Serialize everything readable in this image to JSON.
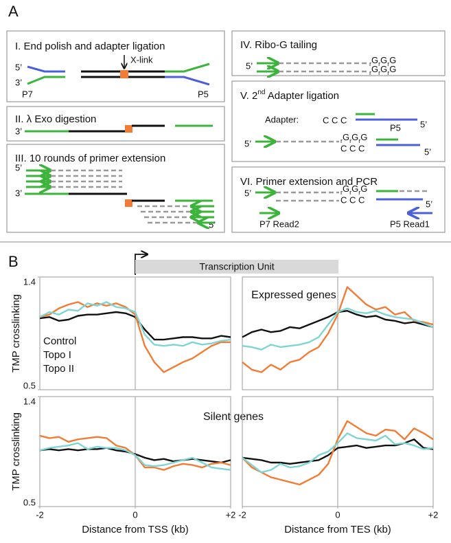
{
  "panel_a": {
    "label": "A",
    "boxes": [
      {
        "title": "I. End polish and adapter ligation",
        "labels": [
          "X-link",
          "5’",
          "3’",
          "P7",
          "P5"
        ]
      },
      {
        "title": "II. λ Exo digestion",
        "labels": [
          "3’"
        ]
      },
      {
        "title": "III. 10 rounds of primer extension",
        "labels": [
          "5’",
          "3’",
          "5’"
        ]
      },
      {
        "title": "IV. Ribo-G tailing",
        "labels": [
          "5’"
        ],
        "tails": [
          [
            "r",
            "G",
            "r",
            "G",
            "r",
            "G"
          ],
          [
            "r",
            "G",
            "r",
            "G",
            "r",
            "G"
          ]
        ]
      },
      {
        "title_parts": [
          "V. 2",
          "nd",
          " Adapter ligation"
        ],
        "labels": [
          "Adapter:",
          "C C C",
          "P5",
          "5’",
          "5’",
          "C C C",
          "5’"
        ],
        "tails": [
          [
            "r",
            "G",
            "r",
            "G",
            "r",
            "G"
          ]
        ]
      },
      {
        "title": "VI. Primer extension and PCR",
        "labels": [
          "5’",
          "C C C",
          "5’",
          "P7 Read2",
          "P5 Read1"
        ],
        "tails": [
          [
            "r",
            "G",
            "r",
            "G",
            "r",
            "G"
          ]
        ]
      }
    ]
  },
  "panel_b": {
    "label": "B",
    "transcription_unit": "Transcription Unit"
  },
  "chart_data": [
    {
      "type": "line",
      "title": "Expressed genes",
      "ylabel": "TMP crosslinking",
      "x": [
        -2,
        -1.8,
        -1.6,
        -1.4,
        -1.2,
        -1,
        -0.8,
        -0.6,
        -0.4,
        -0.2,
        0,
        0.2,
        0.4,
        0.6,
        0.8,
        1,
        1.2,
        1.4,
        1.6,
        1.8,
        2
      ],
      "xlim": [
        -2,
        2
      ],
      "ylim": [
        0.5,
        1.4
      ],
      "yticks": [
        1.4,
        0.5
      ],
      "series": [
        {
          "name": "Control",
          "color": "#111111",
          "values": [
            1.07,
            1.08,
            1.05,
            1.06,
            1.09,
            1.1,
            1.1,
            1.11,
            1.12,
            1.11,
            1.08,
            0.98,
            0.9,
            0.9,
            0.91,
            0.92,
            0.92,
            0.91,
            0.91,
            0.93,
            0.92
          ]
        },
        {
          "name": "Topo I",
          "color": "#f07c35",
          "values": [
            1.08,
            1.1,
            1.15,
            1.18,
            1.2,
            1.16,
            1.19,
            1.17,
            1.19,
            1.16,
            1.1,
            0.85,
            0.72,
            0.64,
            0.68,
            0.72,
            0.75,
            0.8,
            0.85,
            0.88,
            0.88
          ]
        },
        {
          "name": "Topo II",
          "color": "#7fd4d4",
          "values": [
            1.08,
            1.12,
            1.1,
            1.14,
            1.13,
            1.19,
            1.17,
            1.2,
            1.16,
            1.15,
            1.12,
            0.94,
            0.86,
            0.85,
            0.86,
            0.85,
            0.88,
            0.86,
            0.87,
            0.89,
            0.9
          ]
        }
      ]
    },
    {
      "type": "line",
      "x": [
        -2,
        -1.8,
        -1.6,
        -1.4,
        -1.2,
        -1,
        -0.8,
        -0.6,
        -0.4,
        -0.2,
        0,
        0.2,
        0.4,
        0.6,
        0.8,
        1,
        1.2,
        1.4,
        1.6,
        1.8,
        2
      ],
      "xlim": [
        -2,
        2
      ],
      "ylim": [
        0.5,
        1.4
      ],
      "series": [
        {
          "color": "#111111",
          "values": [
            0.92,
            0.96,
            0.98,
            0.96,
            0.97,
            1.0,
            0.99,
            1.02,
            1.05,
            1.08,
            1.12,
            1.13,
            1.1,
            1.08,
            1.09,
            1.06,
            1.05,
            1.03,
            1.04,
            1.02,
            1.0
          ]
        },
        {
          "color": "#f07c35",
          "values": [
            0.72,
            0.66,
            0.64,
            0.7,
            0.66,
            0.72,
            0.74,
            0.8,
            0.84,
            0.95,
            1.1,
            1.32,
            1.25,
            1.18,
            1.14,
            1.16,
            1.1,
            1.12,
            1.05,
            1.04,
            1.02
          ]
        },
        {
          "color": "#7fd4d4",
          "values": [
            0.85,
            0.84,
            0.82,
            0.86,
            0.84,
            0.85,
            0.86,
            0.88,
            0.92,
            1.02,
            1.12,
            1.15,
            1.12,
            1.11,
            1.13,
            1.1,
            1.08,
            1.07,
            1.06,
            1.03,
            1.0
          ]
        }
      ]
    },
    {
      "type": "line",
      "title": "Silent genes",
      "ylabel": "TMP crosslinking",
      "xlabel": "Distance from TSS (kb)",
      "x": [
        -2,
        -1.8,
        -1.6,
        -1.4,
        -1.2,
        -1,
        -0.8,
        -0.6,
        -0.4,
        -0.2,
        0,
        0.2,
        0.4,
        0.6,
        0.8,
        1,
        1.2,
        1.4,
        1.6,
        1.8,
        2
      ],
      "xlim": [
        -2,
        2
      ],
      "ylim": [
        0.5,
        1.4
      ],
      "yticks": [
        1.4,
        0.5
      ],
      "xticks": [
        -2,
        0,
        {
          "value": 2,
          "label": "+2"
        }
      ],
      "series": [
        {
          "color": "#111111",
          "values": [
            0.96,
            0.97,
            0.96,
            0.97,
            0.96,
            0.97,
            0.97,
            0.98,
            0.96,
            0.95,
            0.93,
            0.9,
            0.88,
            0.89,
            0.87,
            0.88,
            0.89,
            0.88,
            0.87,
            0.86,
            0.88
          ]
        },
        {
          "color": "#f07c35",
          "values": [
            1.08,
            1.06,
            1.07,
            1.03,
            1.05,
            1.06,
            1.07,
            1.06,
            1.0,
            0.98,
            0.92,
            0.82,
            0.82,
            0.8,
            0.83,
            0.85,
            0.84,
            0.82,
            0.85,
            0.86,
            0.84
          ]
        },
        {
          "color": "#7fd4d4",
          "values": [
            0.96,
            0.98,
            0.99,
            1.0,
            1.02,
            0.97,
            0.99,
            0.98,
            0.98,
            0.96,
            0.92,
            0.84,
            0.83,
            0.84,
            0.86,
            0.88,
            0.9,
            0.86,
            0.82,
            0.81,
            0.8
          ]
        }
      ]
    },
    {
      "type": "line",
      "xlabel": "Distance from TES (kb)",
      "x": [
        -2,
        -1.8,
        -1.6,
        -1.4,
        -1.2,
        -1,
        -0.8,
        -0.6,
        -0.4,
        -0.2,
        0,
        0.2,
        0.4,
        0.6,
        0.8,
        1,
        1.2,
        1.4,
        1.6,
        1.8,
        2
      ],
      "xlim": [
        -2,
        2
      ],
      "ylim": [
        0.5,
        1.4
      ],
      "xticks": [
        -2,
        0,
        {
          "value": 2,
          "label": "+2"
        }
      ],
      "series": [
        {
          "color": "#111111",
          "values": [
            0.9,
            0.89,
            0.88,
            0.86,
            0.86,
            0.85,
            0.86,
            0.87,
            0.88,
            0.92,
            0.98,
            0.99,
            1.0,
            0.98,
            0.99,
            1.0,
            1.0,
            1.02,
            1.05,
            0.98,
            0.97
          ]
        },
        {
          "color": "#f07c35",
          "values": [
            0.9,
            0.82,
            0.78,
            0.74,
            0.72,
            0.7,
            0.68,
            0.72,
            0.76,
            0.85,
            1.05,
            1.2,
            1.15,
            1.1,
            1.08,
            1.13,
            1.12,
            1.05,
            1.14,
            1.1,
            1.05
          ]
        },
        {
          "color": "#7fd4d4",
          "values": [
            0.9,
            0.84,
            0.78,
            0.8,
            0.85,
            0.82,
            0.83,
            0.86,
            0.92,
            0.95,
            1.02,
            1.1,
            1.06,
            1.05,
            1.04,
            1.08,
            1.01,
            1.02,
            1.0,
            0.97,
            0.98
          ]
        }
      ]
    }
  ]
}
